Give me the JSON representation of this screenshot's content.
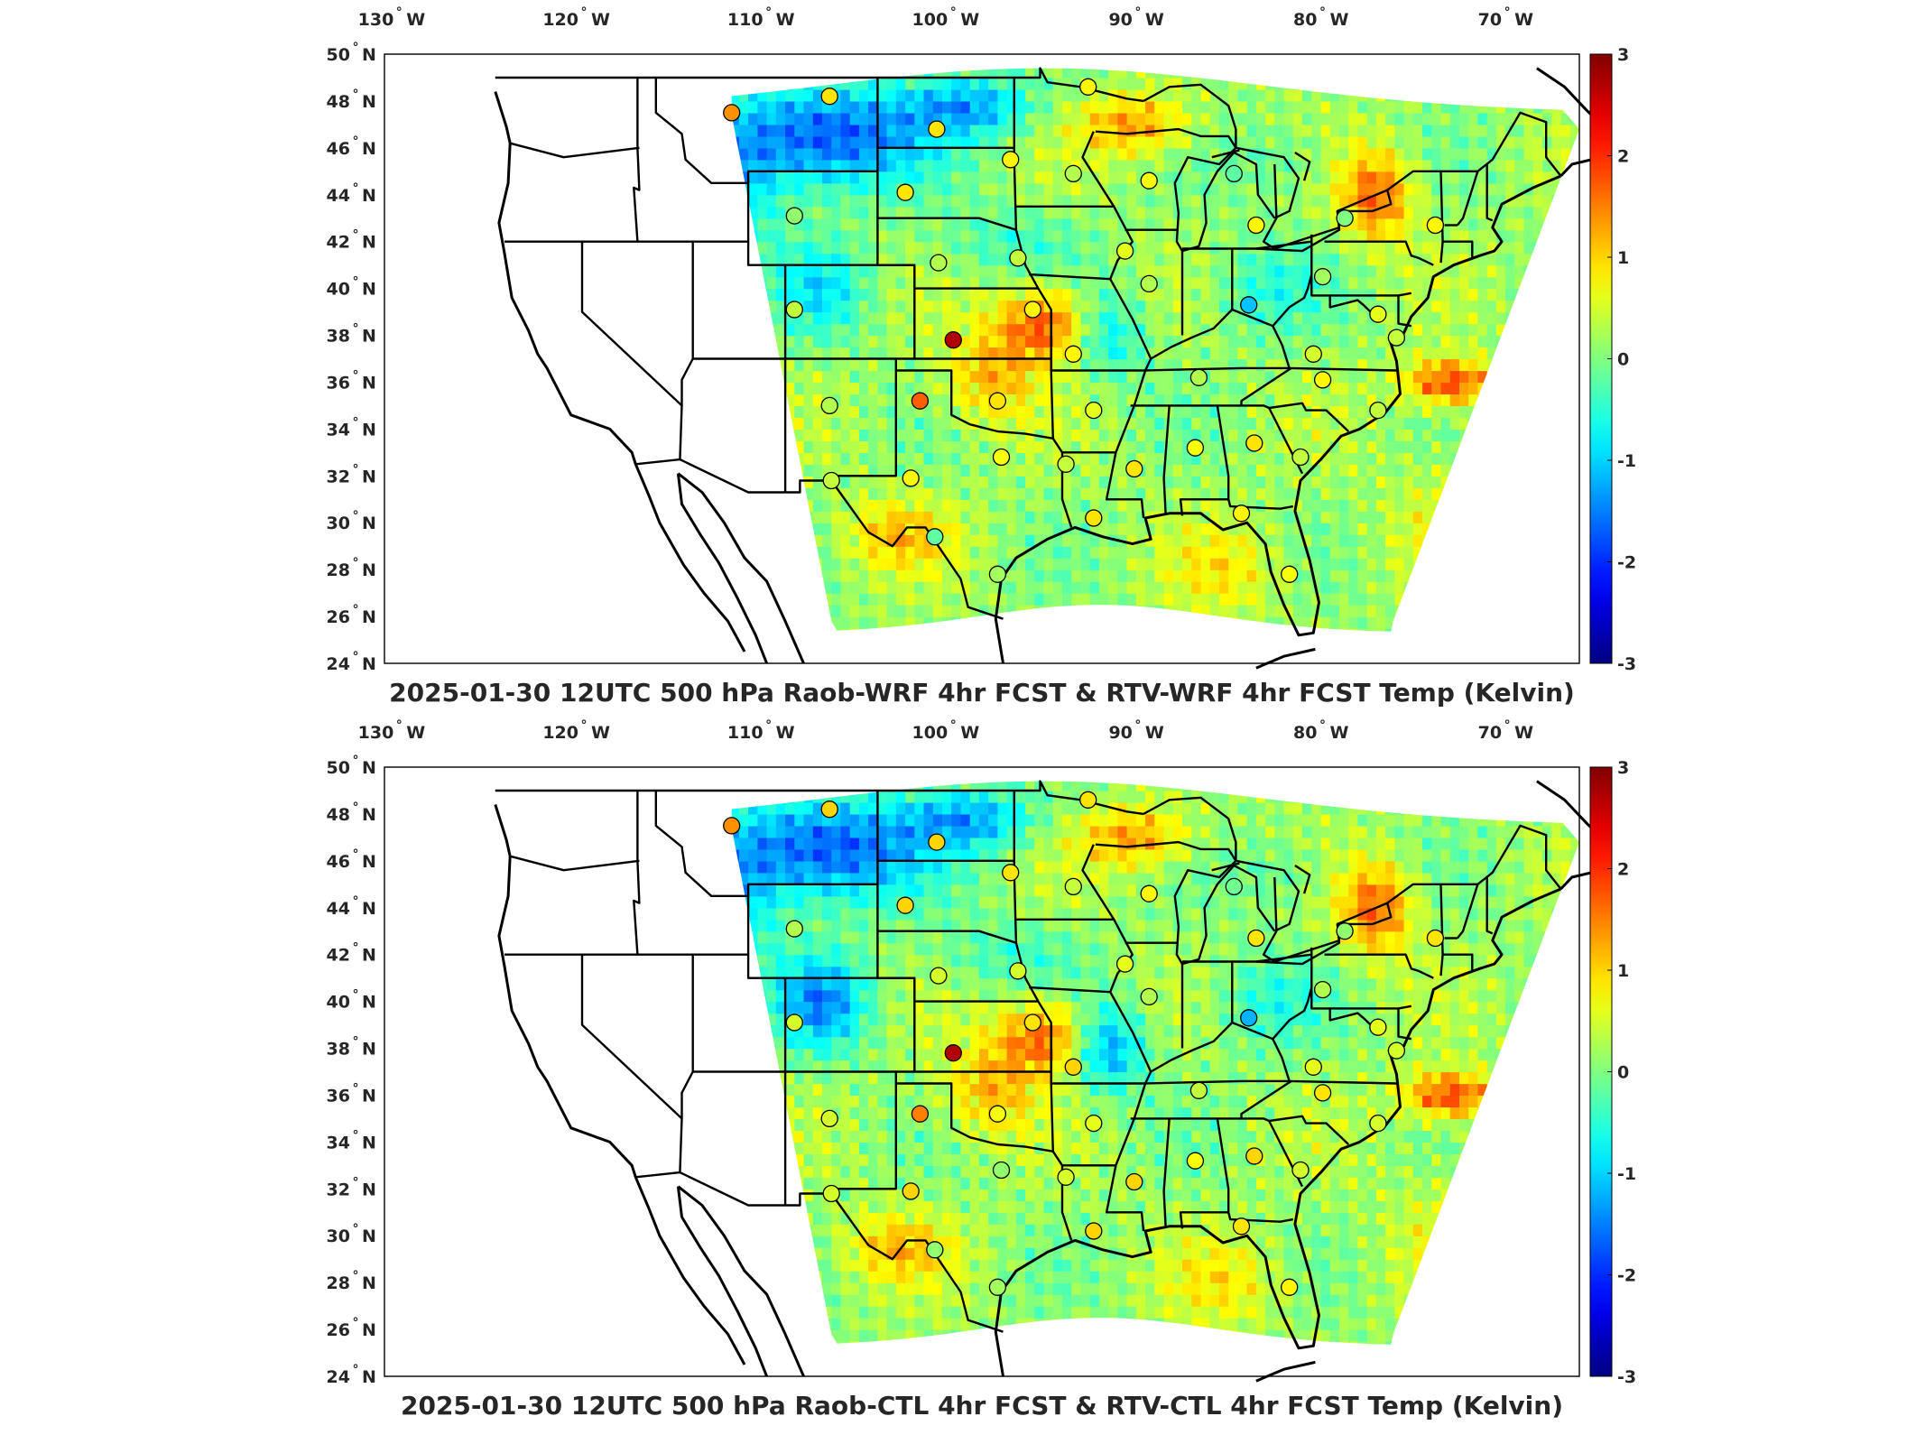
{
  "panels": [
    {
      "id": "top",
      "title": "2025-01-30 12UTC 500 hPa Raob-WRF 4hr FCST & RTV-WRF 4hr FCST Temp (Kelvin)",
      "stations": [
        {
          "lon": -111.9,
          "lat": 47.5,
          "value": 1.4
        },
        {
          "lon": -106.6,
          "lat": 48.2,
          "value": 0.9
        },
        {
          "lon": -100.8,
          "lat": 46.8,
          "value": 0.9
        },
        {
          "lon": -96.8,
          "lat": 45.5,
          "value": 0.8
        },
        {
          "lon": -93.4,
          "lat": 44.9,
          "value": 0.3
        },
        {
          "lon": -89.3,
          "lat": 44.6,
          "value": 0.7
        },
        {
          "lon": -84.7,
          "lat": 44.9,
          "value": -0.2
        },
        {
          "lon": -83.5,
          "lat": 42.7,
          "value": 0.8
        },
        {
          "lon": -78.7,
          "lat": 43.0,
          "value": 0.0
        },
        {
          "lon": -73.8,
          "lat": 42.7,
          "value": 0.8
        },
        {
          "lon": -102.5,
          "lat": 44.1,
          "value": 0.9
        },
        {
          "lon": -108.5,
          "lat": 43.1,
          "value": 0.1
        },
        {
          "lon": -100.7,
          "lat": 41.1,
          "value": 0.3
        },
        {
          "lon": -96.4,
          "lat": 41.3,
          "value": 0.4
        },
        {
          "lon": -90.6,
          "lat": 41.6,
          "value": 0.6
        },
        {
          "lon": -89.3,
          "lat": 40.2,
          "value": 0.3
        },
        {
          "lon": -83.9,
          "lat": 39.3,
          "value": -1.1
        },
        {
          "lon": -79.9,
          "lat": 40.5,
          "value": 0.2
        },
        {
          "lon": -76.9,
          "lat": 38.9,
          "value": 0.6
        },
        {
          "lon": -75.9,
          "lat": 37.9,
          "value": 0.4
        },
        {
          "lon": -80.4,
          "lat": 37.2,
          "value": 0.5
        },
        {
          "lon": -108.5,
          "lat": 39.1,
          "value": 0.4
        },
        {
          "lon": -99.9,
          "lat": 37.8,
          "value": 2.7
        },
        {
          "lon": -95.6,
          "lat": 39.1,
          "value": 0.8
        },
        {
          "lon": -93.4,
          "lat": 37.2,
          "value": 0.8
        },
        {
          "lon": -86.6,
          "lat": 36.2,
          "value": 0.3
        },
        {
          "lon": -79.9,
          "lat": 36.1,
          "value": 0.8
        },
        {
          "lon": -76.9,
          "lat": 34.8,
          "value": 0.4
        },
        {
          "lon": -106.6,
          "lat": 35.0,
          "value": 0.3
        },
        {
          "lon": -101.7,
          "lat": 35.2,
          "value": 1.7
        },
        {
          "lon": -97.5,
          "lat": 35.2,
          "value": 0.9
        },
        {
          "lon": -92.3,
          "lat": 34.8,
          "value": 0.6
        },
        {
          "lon": -97.3,
          "lat": 32.8,
          "value": 0.7
        },
        {
          "lon": -93.8,
          "lat": 32.5,
          "value": 0.4
        },
        {
          "lon": -90.1,
          "lat": 32.3,
          "value": 0.9
        },
        {
          "lon": -86.8,
          "lat": 33.2,
          "value": 0.7
        },
        {
          "lon": -83.6,
          "lat": 33.4,
          "value": 0.9
        },
        {
          "lon": -81.1,
          "lat": 32.8,
          "value": 0.4
        },
        {
          "lon": -106.5,
          "lat": 31.8,
          "value": 0.4
        },
        {
          "lon": -102.2,
          "lat": 31.9,
          "value": 0.8
        },
        {
          "lon": -100.9,
          "lat": 29.4,
          "value": -0.2
        },
        {
          "lon": -97.5,
          "lat": 27.8,
          "value": 0.2
        },
        {
          "lon": -92.3,
          "lat": 30.2,
          "value": 0.9
        },
        {
          "lon": -84.3,
          "lat": 30.4,
          "value": 0.8
        },
        {
          "lon": -81.7,
          "lat": 27.8,
          "value": 0.7
        },
        {
          "lon": -92.6,
          "lat": 48.6,
          "value": 0.8
        }
      ]
    },
    {
      "id": "bottom",
      "title": "2025-01-30 12UTC 500 hPa Raob-CTL 4hr FCST & RTV-CTL 4hr FCST Temp (Kelvin)",
      "stations": [
        {
          "lon": -111.9,
          "lat": 47.5,
          "value": 1.4
        },
        {
          "lon": -106.6,
          "lat": 48.2,
          "value": 1.0
        },
        {
          "lon": -100.8,
          "lat": 46.8,
          "value": 1.0
        },
        {
          "lon": -96.8,
          "lat": 45.5,
          "value": 0.9
        },
        {
          "lon": -93.4,
          "lat": 44.9,
          "value": 0.4
        },
        {
          "lon": -89.3,
          "lat": 44.6,
          "value": 0.8
        },
        {
          "lon": -84.7,
          "lat": 44.9,
          "value": -0.1
        },
        {
          "lon": -83.5,
          "lat": 42.7,
          "value": 0.9
        },
        {
          "lon": -78.7,
          "lat": 43.0,
          "value": 0.1
        },
        {
          "lon": -73.8,
          "lat": 42.7,
          "value": 0.9
        },
        {
          "lon": -102.5,
          "lat": 44.1,
          "value": 1.0
        },
        {
          "lon": -108.5,
          "lat": 43.1,
          "value": 0.3
        },
        {
          "lon": -100.7,
          "lat": 41.1,
          "value": 0.5
        },
        {
          "lon": -96.4,
          "lat": 41.3,
          "value": 0.5
        },
        {
          "lon": -90.6,
          "lat": 41.6,
          "value": 0.6
        },
        {
          "lon": -89.3,
          "lat": 40.2,
          "value": 0.3
        },
        {
          "lon": -83.9,
          "lat": 39.3,
          "value": -1.2
        },
        {
          "lon": -79.9,
          "lat": 40.5,
          "value": 0.3
        },
        {
          "lon": -76.9,
          "lat": 38.9,
          "value": 0.6
        },
        {
          "lon": -75.9,
          "lat": 37.9,
          "value": 0.5
        },
        {
          "lon": -80.4,
          "lat": 37.2,
          "value": 0.6
        },
        {
          "lon": -108.5,
          "lat": 39.1,
          "value": 0.5
        },
        {
          "lon": -99.9,
          "lat": 37.8,
          "value": 2.7
        },
        {
          "lon": -95.6,
          "lat": 39.1,
          "value": 0.9
        },
        {
          "lon": -93.4,
          "lat": 37.2,
          "value": 1.0
        },
        {
          "lon": -86.6,
          "lat": 36.2,
          "value": 0.4
        },
        {
          "lon": -79.9,
          "lat": 36.1,
          "value": 0.9
        },
        {
          "lon": -76.9,
          "lat": 34.8,
          "value": 0.5
        },
        {
          "lon": -106.6,
          "lat": 35.0,
          "value": 0.5
        },
        {
          "lon": -101.7,
          "lat": 35.2,
          "value": 1.5
        },
        {
          "lon": -97.5,
          "lat": 35.2,
          "value": 0.7
        },
        {
          "lon": -92.3,
          "lat": 34.8,
          "value": 0.6
        },
        {
          "lon": -97.3,
          "lat": 32.8,
          "value": 0.1
        },
        {
          "lon": -93.8,
          "lat": 32.5,
          "value": 0.5
        },
        {
          "lon": -90.1,
          "lat": 32.3,
          "value": 1.0
        },
        {
          "lon": -86.8,
          "lat": 33.2,
          "value": 0.7
        },
        {
          "lon": -83.6,
          "lat": 33.4,
          "value": 1.0
        },
        {
          "lon": -81.1,
          "lat": 32.8,
          "value": 0.5
        },
        {
          "lon": -106.5,
          "lat": 31.8,
          "value": 0.5
        },
        {
          "lon": -102.2,
          "lat": 31.9,
          "value": 1.0
        },
        {
          "lon": -100.9,
          "lat": 29.4,
          "value": 0.1
        },
        {
          "lon": -97.5,
          "lat": 27.8,
          "value": 0.2
        },
        {
          "lon": -92.3,
          "lat": 30.2,
          "value": 1.0
        },
        {
          "lon": -84.3,
          "lat": 30.4,
          "value": 0.9
        },
        {
          "lon": -81.7,
          "lat": 27.8,
          "value": 0.8
        },
        {
          "lon": -92.6,
          "lat": 48.6,
          "value": 0.9
        }
      ]
    }
  ],
  "axes": {
    "lon_labels": [
      "130",
      "120",
      "110",
      "100",
      "90",
      "80",
      "70"
    ],
    "lon_values": [
      -130,
      -120,
      -110,
      -100,
      -90,
      -80,
      -70
    ],
    "lon_suffix": "W",
    "lat_labels": [
      "50",
      "48",
      "46",
      "44",
      "42",
      "40",
      "38",
      "36",
      "34",
      "32",
      "30",
      "28",
      "26",
      "24"
    ],
    "lat_values": [
      50,
      48,
      46,
      44,
      42,
      40,
      38,
      36,
      34,
      32,
      30,
      28,
      26,
      24
    ],
    "lat_suffix": "N",
    "degree_symbol": "°",
    "lon_range": [
      -130.7,
      -66
    ],
    "lat_range": [
      24,
      50
    ]
  },
  "colorbar": {
    "colormap": "jet",
    "range": [
      -3,
      3
    ],
    "tick_labels": [
      "3",
      "2",
      "1",
      "0",
      "-1",
      "-2",
      "-3"
    ],
    "tick_values": [
      3,
      2,
      1,
      0,
      -1,
      -2,
      -3
    ]
  }
}
